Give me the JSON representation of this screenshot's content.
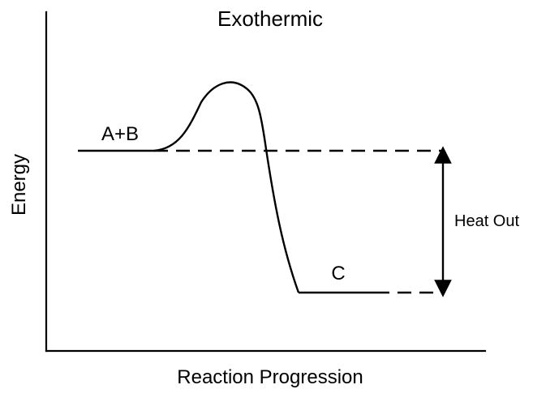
{
  "title": "Exothermic",
  "axes": {
    "x_label": "Reaction Progression",
    "y_label": "Energy"
  },
  "labels": {
    "reactants": "A+B",
    "product": "C",
    "heat": "Heat Out"
  },
  "colors": {
    "stroke": "#000000",
    "background": "#ffffff"
  }
}
